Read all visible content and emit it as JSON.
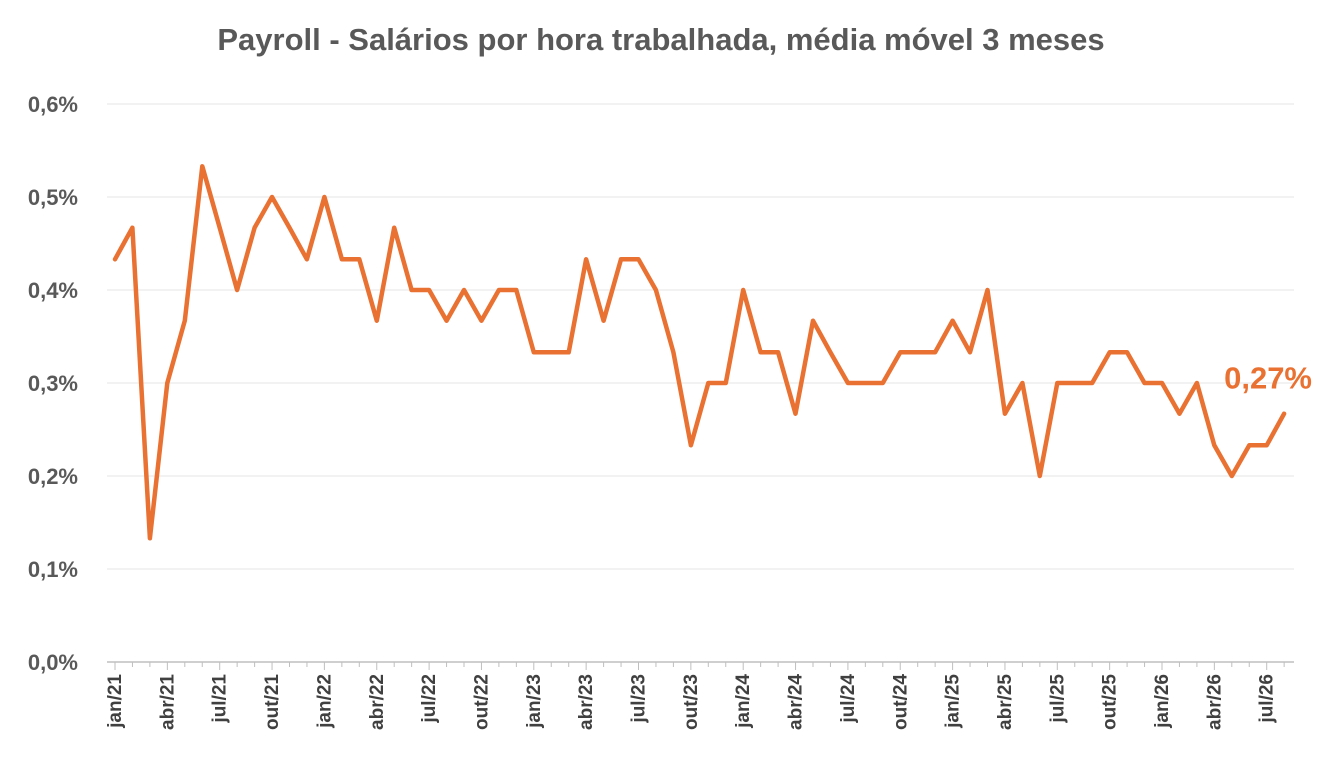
{
  "chart_data": {
    "type": "line",
    "title": "Payroll - Salários por hora trabalhada, média móvel 3 meses",
    "xlabel": "",
    "ylabel": "",
    "ylim": [
      0,
      0.6
    ],
    "y_ticks": [
      0,
      0.1,
      0.2,
      0.3,
      0.4,
      0.5,
      0.6
    ],
    "y_tick_labels": [
      "0,0%",
      "0,1%",
      "0,2%",
      "0,3%",
      "0,4%",
      "0,5%",
      "0,6%"
    ],
    "x_tick_labels": [
      "jan/21",
      "abr/21",
      "jul/21",
      "out/21",
      "jan/22",
      "abr/22",
      "jul/22",
      "out/22",
      "jan/23",
      "abr/23",
      "jul/23",
      "out/23",
      "jan/24",
      "abr/24",
      "jul/24",
      "out/24",
      "jan/25",
      "abr/25",
      "jul/25",
      "out/25",
      "jan/26",
      "abr/26",
      "jul/26"
    ],
    "grid": true,
    "legend": "none",
    "line_color": "#E97132",
    "series": [
      {
        "values": [
          0.433,
          0.467,
          0.133,
          0.3,
          0.367,
          0.533,
          0.467,
          0.4,
          0.467,
          0.5,
          0.467,
          0.433,
          0.5,
          0.433,
          0.433,
          0.367,
          0.467,
          0.4,
          0.4,
          0.367,
          0.4,
          0.367,
          0.4,
          0.4,
          0.333,
          0.333,
          0.333,
          0.433,
          0.367,
          0.433,
          0.433,
          0.4,
          0.333,
          0.233,
          0.3,
          0.3,
          0.4,
          0.333,
          0.333,
          0.267,
          0.367,
          0.333,
          0.3,
          0.3,
          0.3,
          0.333,
          0.333,
          0.333,
          0.367,
          0.333,
          0.4,
          0.267,
          0.3,
          0.2,
          0.3,
          0.3,
          0.3,
          0.333,
          0.333,
          0.3,
          0.3,
          0.267,
          0.3,
          0.233,
          0.2,
          0.233,
          0.233,
          0.267
        ]
      }
    ],
    "end_label": "0,27%"
  }
}
